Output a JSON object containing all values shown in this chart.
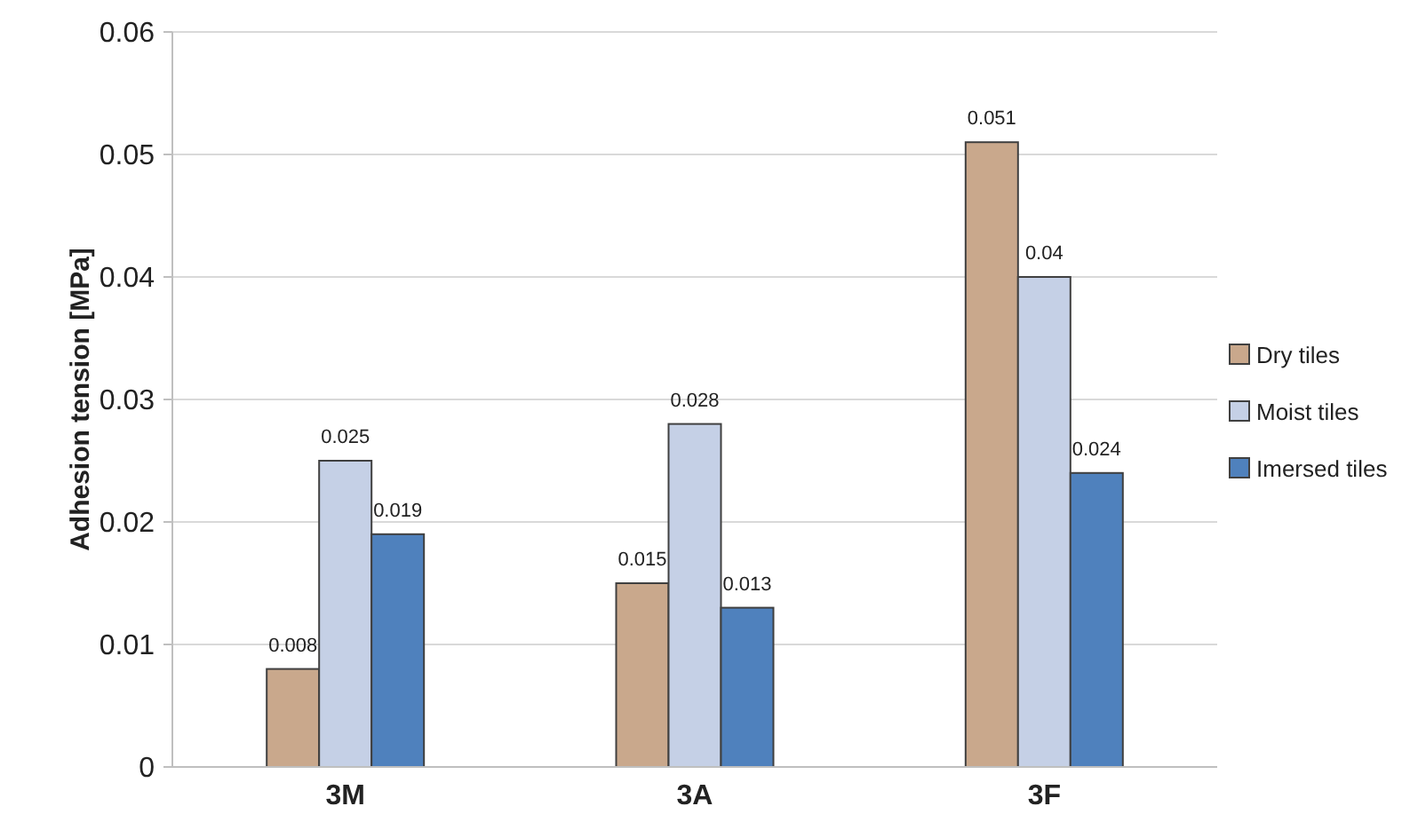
{
  "chart_data": {
    "type": "bar",
    "ylabel": "Adhesion tension [MPa]",
    "categories": [
      "3M",
      "3A",
      "3F"
    ],
    "series": [
      {
        "name": "Dry tiles",
        "color": "#c9a88c",
        "values": [
          0.008,
          0.015,
          0.051
        ]
      },
      {
        "name": "Moist tiles",
        "color": "#c5d0e6",
        "values": [
          0.025,
          0.028,
          0.04
        ]
      },
      {
        "name": "Imersed tiles",
        "color": "#4f81bd",
        "values": [
          0.019,
          0.013,
          0.024
        ]
      }
    ],
    "ylim": [
      0,
      0.06
    ],
    "yticks": [
      {
        "value": 0,
        "label": "0"
      },
      0.01,
      0.02,
      0.03,
      0.04,
      0.05,
      0.06
    ],
    "grid": "y",
    "legend": "right",
    "data_labels": true
  }
}
